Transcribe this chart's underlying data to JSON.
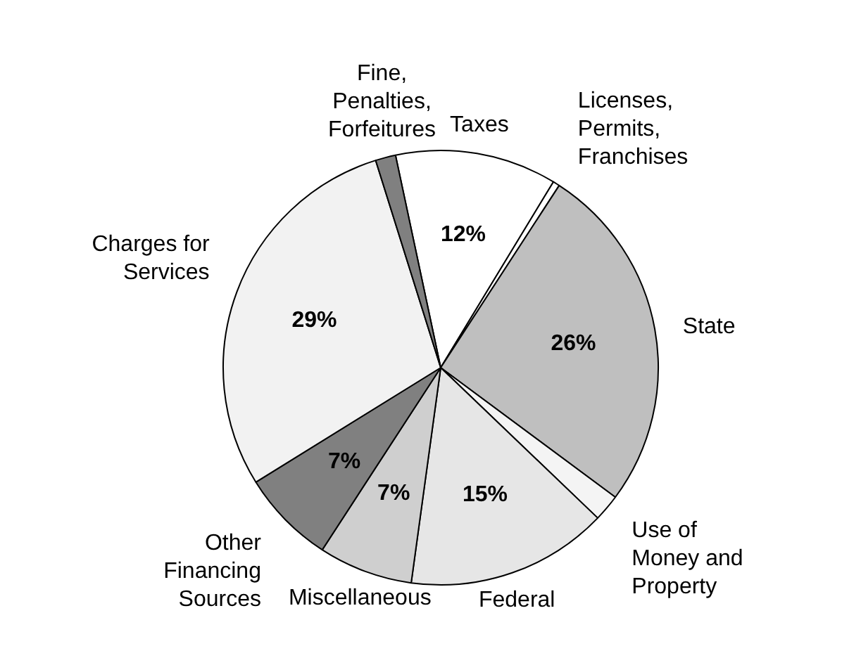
{
  "chart_data": {
    "type": "pie",
    "categories": [
      "Taxes",
      "Licenses, Permits, Franchises",
      "State",
      "Use of Money and Property",
      "Federal",
      "Miscellaneous",
      "Other Financing Sources",
      "Charges for Services",
      "Fine, Penalties, Forfeitures"
    ],
    "values": [
      12,
      0.5,
      26,
      2,
      15,
      7,
      7,
      29,
      1.5
    ],
    "value_labels": [
      "12%",
      null,
      "26%",
      null,
      "15%",
      "7%",
      "7%",
      "29%",
      null
    ],
    "colors": [
      "#ffffff",
      "#ffffff",
      "#bfbfbf",
      "#f4f4f4",
      "#e6e6e6",
      "#cfcfcf",
      "#808080",
      "#f2f2f2",
      "#808080"
    ],
    "legend": false
  }
}
